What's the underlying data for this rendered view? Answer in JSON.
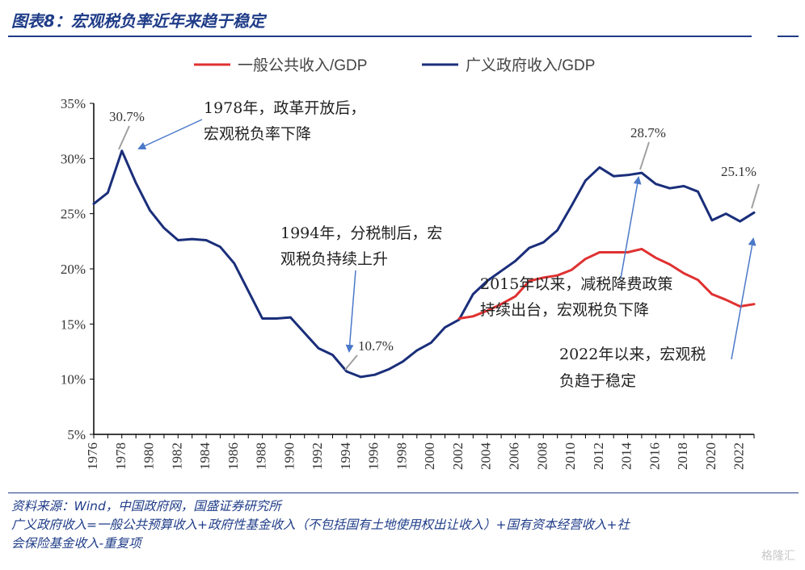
{
  "header": {
    "title": "图表8：宏观税负率近年来趋于稳定"
  },
  "footer": {
    "source": "资料来源：Wind，中国政府网，国盛证券研究所",
    "note_line1": "广义政府收入=一般公共预算收入+政府性基金收入（不包括国有土地使用权出让收入）+国有资本经营收入+社",
    "note_line2": "会保险基金收入-重复项"
  },
  "watermark": "格隆汇",
  "colors": {
    "red": "#e03131",
    "navy": "#1a2e7a",
    "arrow": "#4a78c8",
    "grey": "#a0a0a0"
  },
  "chart_data": {
    "type": "line",
    "title": "",
    "xlabel": "",
    "ylabel": "",
    "ylim": [
      5,
      35
    ],
    "xlim": [
      1976,
      2023
    ],
    "yticks": [
      5,
      10,
      15,
      20,
      25,
      30,
      35
    ],
    "ytick_labels": [
      "5%",
      "10%",
      "15%",
      "20%",
      "25%",
      "30%",
      "35%"
    ],
    "xticks": [
      1976,
      1978,
      1980,
      1982,
      1984,
      1986,
      1988,
      1990,
      1992,
      1994,
      1996,
      1998,
      2000,
      2002,
      2004,
      2006,
      2008,
      2010,
      2012,
      2014,
      2016,
      2018,
      2020,
      2022
    ],
    "legend_position": "top",
    "series": [
      {
        "name": "一般公共收入/GDP",
        "color": "#e03131",
        "x": [
          2002,
          2003,
          2004,
          2005,
          2006,
          2007,
          2008,
          2009,
          2010,
          2011,
          2012,
          2013,
          2014,
          2015,
          2016,
          2017,
          2018,
          2019,
          2020,
          2021,
          2022,
          2023
        ],
        "y": [
          15.5,
          15.7,
          16.2,
          16.8,
          17.5,
          18.9,
          19.2,
          19.4,
          19.9,
          20.9,
          21.5,
          21.5,
          21.5,
          21.8,
          21.0,
          20.4,
          19.6,
          19.0,
          17.7,
          17.2,
          16.6,
          16.8
        ]
      },
      {
        "name": "广义政府收入/GDP",
        "color": "#1a2e7a",
        "x": [
          1976,
          1977,
          1978,
          1979,
          1980,
          1981,
          1982,
          1983,
          1984,
          1985,
          1986,
          1987,
          1988,
          1989,
          1990,
          1991,
          1992,
          1993,
          1994,
          1995,
          1996,
          1997,
          1998,
          1999,
          2000,
          2001,
          2002,
          2003,
          2004,
          2005,
          2006,
          2007,
          2008,
          2009,
          2010,
          2011,
          2012,
          2013,
          2014,
          2015,
          2016,
          2017,
          2018,
          2019,
          2020,
          2021,
          2022,
          2023
        ],
        "y": [
          25.9,
          26.9,
          30.7,
          27.8,
          25.3,
          23.7,
          22.6,
          22.7,
          22.6,
          22.0,
          20.5,
          18.0,
          15.5,
          15.5,
          15.6,
          14.2,
          12.8,
          12.2,
          10.7,
          10.2,
          10.4,
          10.9,
          11.6,
          12.6,
          13.3,
          14.7,
          15.4,
          17.7,
          18.9,
          19.8,
          20.7,
          21.9,
          22.4,
          23.5,
          25.7,
          28.0,
          29.2,
          28.4,
          28.5,
          28.7,
          27.7,
          27.3,
          27.5,
          27.0,
          24.4,
          25.0,
          24.3,
          25.1
        ]
      }
    ],
    "annotations": [
      {
        "id": "a1978",
        "lines": [
          "1978年，政革开放后，",
          "宏观税负率下降"
        ],
        "target_x": 1978,
        "target_y": 30.7
      },
      {
        "id": "a1994",
        "lines": [
          "1994年，分税制后，宏",
          "观税负持续上升"
        ],
        "target_x": 1994,
        "target_y": 10.7
      },
      {
        "id": "a2015",
        "lines": [
          "2015年以来，减税降费政策",
          "持续出台，宏观税负下降"
        ],
        "target_x": 2015,
        "target_y": 28.7
      },
      {
        "id": "a2022",
        "lines": [
          "2022年以来，宏观税",
          "负趋于稳定"
        ],
        "target_x": 2023,
        "target_y": 25.1
      }
    ],
    "data_labels": [
      {
        "text": "30.7%",
        "x": 1978,
        "y": 30.7
      },
      {
        "text": "10.7%",
        "x": 1994,
        "y": 10.7
      },
      {
        "text": "28.7%",
        "x": 2015,
        "y": 28.7
      },
      {
        "text": "25.1%",
        "x": 2023,
        "y": 25.1
      }
    ]
  }
}
